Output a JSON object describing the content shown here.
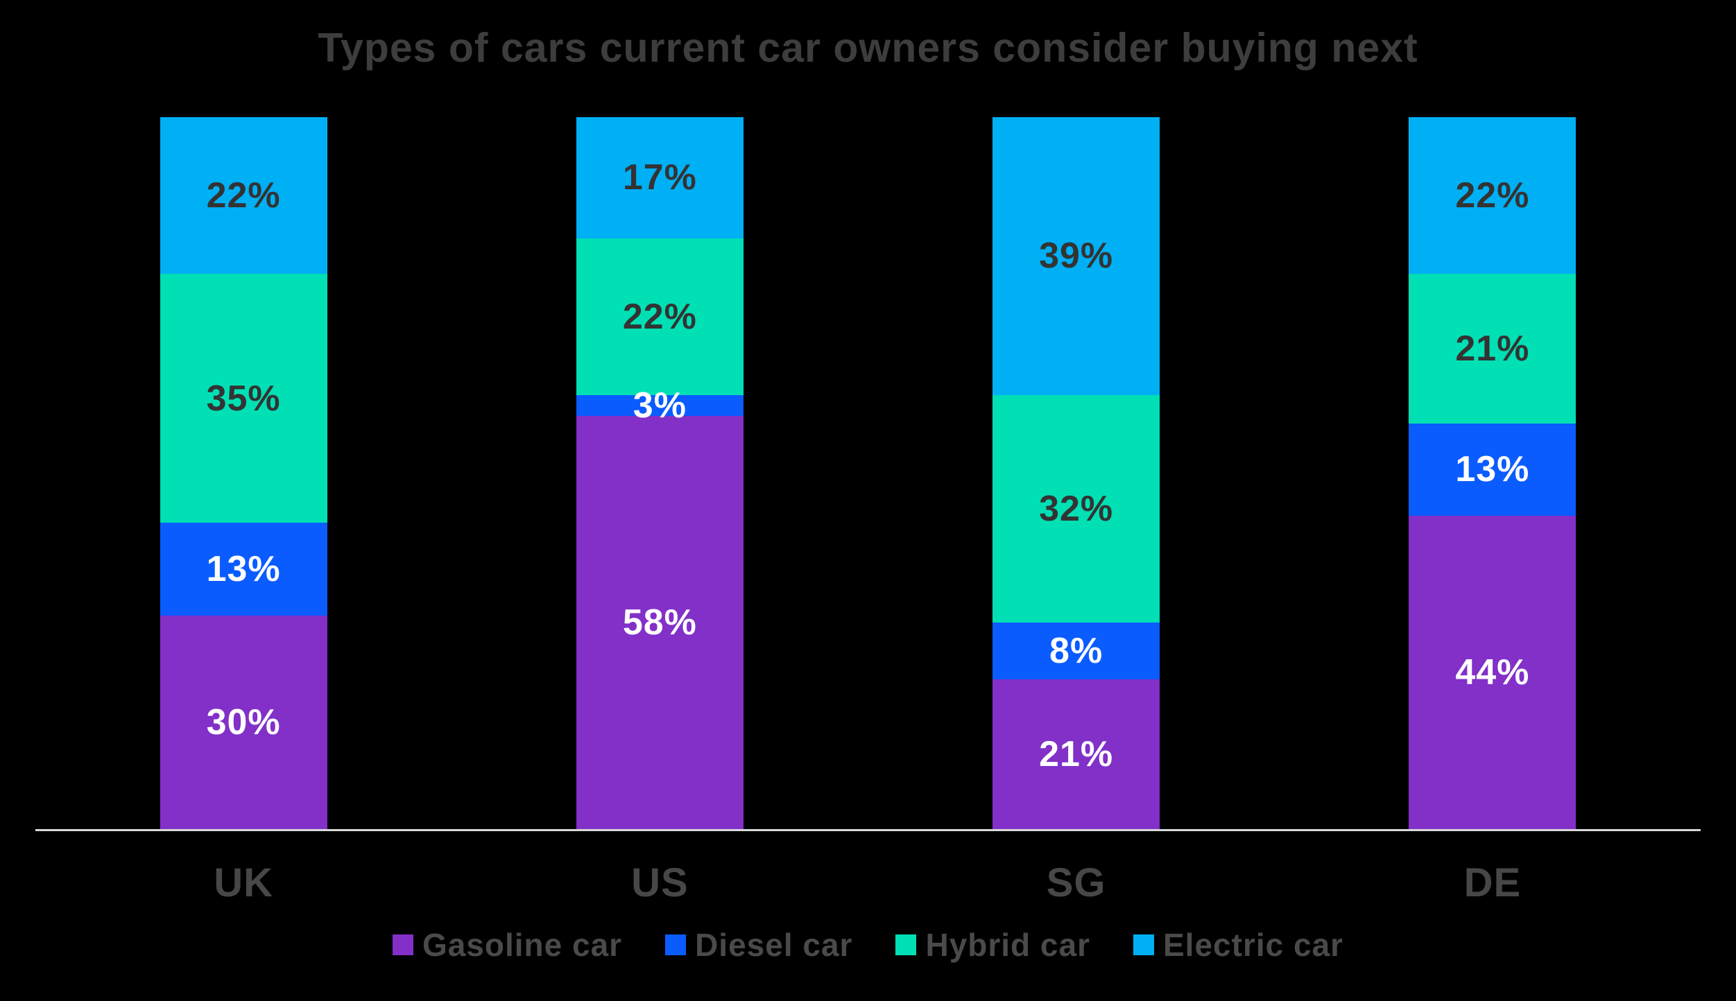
{
  "title": "Types of cars current car owners consider buying next",
  "chart_data": {
    "type": "bar",
    "variant": "stacked-percentage-column",
    "title": "Types of cars current car owners consider buying next",
    "categories": [
      "UK",
      "US",
      "SG",
      "DE"
    ],
    "series": [
      {
        "name": "Gasoline car",
        "color": "#8230c8",
        "label_color": "#ffffff",
        "values": [
          30,
          58,
          21,
          44
        ]
      },
      {
        "name": "Diesel car",
        "color": "#0a5cff",
        "label_color": "#ffffff",
        "values": [
          13,
          3,
          8,
          13
        ]
      },
      {
        "name": "Hybrid car",
        "color": "#00e0b4",
        "label_color": "#333333",
        "values": [
          35,
          22,
          32,
          21
        ]
      },
      {
        "name": "Electric car",
        "color": "#00b0f5",
        "label_color": "#333333",
        "values": [
          22,
          17,
          39,
          22
        ]
      }
    ],
    "value_suffix": "%",
    "ylim": [
      0,
      100
    ],
    "grid": false,
    "legend_position": "bottom",
    "background_color": "#000000",
    "title_color": "#3d3d3d",
    "axis_label_color": "#474747",
    "legend_text_color": "#4a4a4a",
    "axis_line_color": "#d9d9d9"
  }
}
